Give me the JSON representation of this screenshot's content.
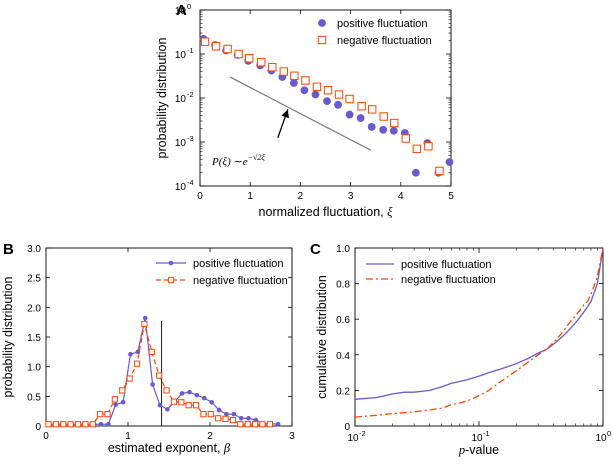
{
  "colors": {
    "positive": "#6a5acd",
    "negative": "#ff4500",
    "reference": "#808080"
  },
  "chart_data": [
    {
      "id": "A",
      "type": "scatter",
      "panel_label": "A",
      "xlabel_text": "normalized fluctuation, ",
      "xlabel_symbol": "ξ",
      "ylabel": "probability distribution",
      "xlim": [
        0,
        5
      ],
      "ylim": [
        0.0001,
        1
      ],
      "yscale": "log",
      "x_ticks": [
        0,
        1,
        2,
        3,
        4,
        5
      ],
      "x_tick_labels": [
        "0",
        "1",
        "2",
        "3",
        "4",
        "5"
      ],
      "y_ticks": [
        0.0001,
        0.001,
        0.01,
        0.1,
        1
      ],
      "y_tick_base": "10",
      "y_tick_exponents": [
        "-4",
        "-3",
        "-2",
        "-1",
        "0"
      ],
      "grid": false,
      "legend_position": "top-right",
      "series": [
        {
          "name": "positive fluctuation",
          "marker": "filled-circle",
          "x": [
            0.07,
            0.3,
            0.52,
            0.75,
            0.96,
            1.2,
            1.42,
            1.64,
            1.87,
            2.08,
            2.3,
            2.53,
            2.75,
            2.98,
            3.2,
            3.42,
            3.65,
            3.86,
            4.08,
            4.3,
            4.53,
            4.75,
            4.97
          ],
          "y": [
            0.22,
            0.16,
            0.12,
            0.095,
            0.07,
            0.055,
            0.042,
            0.03,
            0.022,
            0.015,
            0.012,
            0.0085,
            0.007,
            0.0042,
            0.0035,
            0.0022,
            0.0019,
            0.0018,
            0.0016,
            0.0002,
            0.00095,
            0.0002,
            0.00035
          ]
        },
        {
          "name": "negative fluctuation",
          "marker": "open-square",
          "x": [
            0.1,
            0.32,
            0.55,
            0.77,
            0.98,
            1.22,
            1.44,
            1.67,
            1.88,
            2.1,
            2.33,
            2.55,
            2.77,
            2.98,
            3.22,
            3.43,
            3.66,
            3.87,
            4.1,
            4.32,
            4.55,
            4.77
          ],
          "y": [
            0.19,
            0.15,
            0.13,
            0.1,
            0.08,
            0.065,
            0.05,
            0.04,
            0.032,
            0.025,
            0.018,
            0.015,
            0.012,
            0.0095,
            0.0065,
            0.0055,
            0.0038,
            0.0027,
            0.0012,
            0.0007,
            0.0008,
            0.00022
          ]
        }
      ],
      "reference_line": {
        "x": [
          0.6,
          3.4
        ],
        "y": [
          0.03,
          0.00065
        ]
      },
      "annotation": {
        "prefix": "P(ξ) ∼e",
        "exponent": "−√2ξ",
        "arrow_from": [
          1.55,
          0.00125
        ],
        "arrow_to": [
          1.75,
          0.0055
        ]
      }
    },
    {
      "id": "B",
      "type": "line",
      "panel_label": "B",
      "xlabel_text": "estimated exponent, ",
      "xlabel_symbol": "β",
      "ylabel": "probability distribution",
      "xlim": [
        0,
        3
      ],
      "ylim": [
        0,
        3.0
      ],
      "x_ticks": [
        0,
        1,
        2,
        3
      ],
      "x_tick_labels": [
        "0",
        "1",
        "2",
        "3"
      ],
      "y_ticks": [
        0,
        0.5,
        1.0,
        1.5,
        2.0,
        2.5,
        3.0
      ],
      "y_tick_labels": [
        "0",
        "0.5",
        "1.0",
        "1.5",
        "2.0",
        "2.5",
        "3.0"
      ],
      "grid": false,
      "legend_position": "top-right",
      "vertical_line_x": 1.41,
      "series": [
        {
          "name": "positive fluctuation",
          "style": "solid",
          "marker": "filled-circle",
          "x": [
            0.04,
            0.13,
            0.22,
            0.31,
            0.4,
            0.49,
            0.58,
            0.67,
            0.76,
            0.85,
            0.94,
            1.03,
            1.12,
            1.21,
            1.3,
            1.39,
            1.48,
            1.57,
            1.66,
            1.75,
            1.84,
            1.93,
            2.02,
            2.11,
            2.2,
            2.29,
            2.38,
            2.47,
            2.56,
            2.65,
            2.74,
            2.83
          ],
          "y": [
            0.03,
            0.03,
            0.03,
            0.03,
            0.03,
            0.03,
            0.03,
            0.03,
            0.03,
            0.36,
            0.4,
            1.21,
            1.25,
            1.82,
            0.7,
            0.35,
            0.28,
            0.41,
            0.55,
            0.57,
            0.52,
            0.47,
            0.4,
            0.27,
            0.2,
            0.2,
            0.13,
            0.13,
            0.1,
            0.04,
            0.04,
            0.03
          ]
        },
        {
          "name": "negative fluctuation",
          "style": "dashed",
          "marker": "open-square",
          "x": [
            0.03,
            0.12,
            0.21,
            0.3,
            0.39,
            0.48,
            0.57,
            0.66,
            0.75,
            0.84,
            0.93,
            1.02,
            1.11,
            1.2,
            1.29,
            1.38,
            1.47,
            1.56,
            1.65,
            1.74,
            1.83,
            1.92,
            2.01,
            2.1,
            2.19,
            2.28,
            2.37,
            2.46,
            2.55,
            2.64,
            2.73
          ],
          "y": [
            0.03,
            0.03,
            0.03,
            0.03,
            0.03,
            0.03,
            0.03,
            0.2,
            0.2,
            0.45,
            0.6,
            0.8,
            1.05,
            1.72,
            1.25,
            0.85,
            0.6,
            0.41,
            0.4,
            0.35,
            0.35,
            0.2,
            0.2,
            0.13,
            0.12,
            0.1,
            0.03,
            0.03,
            0.03,
            0.03,
            0.03
          ]
        }
      ]
    },
    {
      "id": "C",
      "type": "line",
      "panel_label": "C",
      "xlabel_text": "-value",
      "xlabel_symbol": "p",
      "ylabel": "cumulative distribution",
      "xlim": [
        0.01,
        1
      ],
      "ylim": [
        0,
        1.0
      ],
      "xscale": "log",
      "x_ticks": [
        0.01,
        0.1,
        1
      ],
      "x_tick_base": "10",
      "x_tick_exponents": [
        "-2",
        "-1",
        "0"
      ],
      "y_ticks": [
        0,
        0.2,
        0.4,
        0.6,
        0.8,
        1.0
      ],
      "y_tick_labels": [
        "0",
        "0.2",
        "0.4",
        "0.6",
        "0.8",
        "1.0"
      ],
      "grid": false,
      "legend_position": "top-left",
      "series": [
        {
          "name": "positive fluctuation",
          "style": "solid",
          "x": [
            0.01,
            0.015,
            0.02,
            0.025,
            0.03,
            0.04,
            0.05,
            0.06,
            0.07,
            0.08,
            0.1,
            0.12,
            0.15,
            0.2,
            0.25,
            0.3,
            0.35,
            0.4,
            0.45,
            0.5,
            0.55,
            0.6,
            0.65,
            0.7,
            0.75,
            0.8,
            0.85,
            0.9,
            0.95,
            1.0
          ],
          "y": [
            0.15,
            0.16,
            0.18,
            0.19,
            0.19,
            0.2,
            0.22,
            0.24,
            0.25,
            0.26,
            0.28,
            0.3,
            0.32,
            0.35,
            0.38,
            0.41,
            0.43,
            0.46,
            0.49,
            0.52,
            0.55,
            0.58,
            0.61,
            0.64,
            0.67,
            0.7,
            0.75,
            0.8,
            0.9,
            1.0
          ]
        },
        {
          "name": "negative fluctuation",
          "style": "dash-dot",
          "x": [
            0.01,
            0.015,
            0.02,
            0.025,
            0.03,
            0.04,
            0.05,
            0.06,
            0.07,
            0.08,
            0.1,
            0.12,
            0.15,
            0.2,
            0.25,
            0.3,
            0.35,
            0.4,
            0.45,
            0.5,
            0.55,
            0.6,
            0.65,
            0.7,
            0.75,
            0.8,
            0.85,
            0.9,
            0.95,
            1.0
          ],
          "y": [
            0.05,
            0.06,
            0.07,
            0.075,
            0.08,
            0.09,
            0.1,
            0.12,
            0.13,
            0.14,
            0.17,
            0.2,
            0.25,
            0.31,
            0.36,
            0.4,
            0.43,
            0.47,
            0.51,
            0.55,
            0.59,
            0.62,
            0.65,
            0.68,
            0.7,
            0.74,
            0.79,
            0.84,
            0.92,
            1.0
          ]
        }
      ]
    }
  ]
}
